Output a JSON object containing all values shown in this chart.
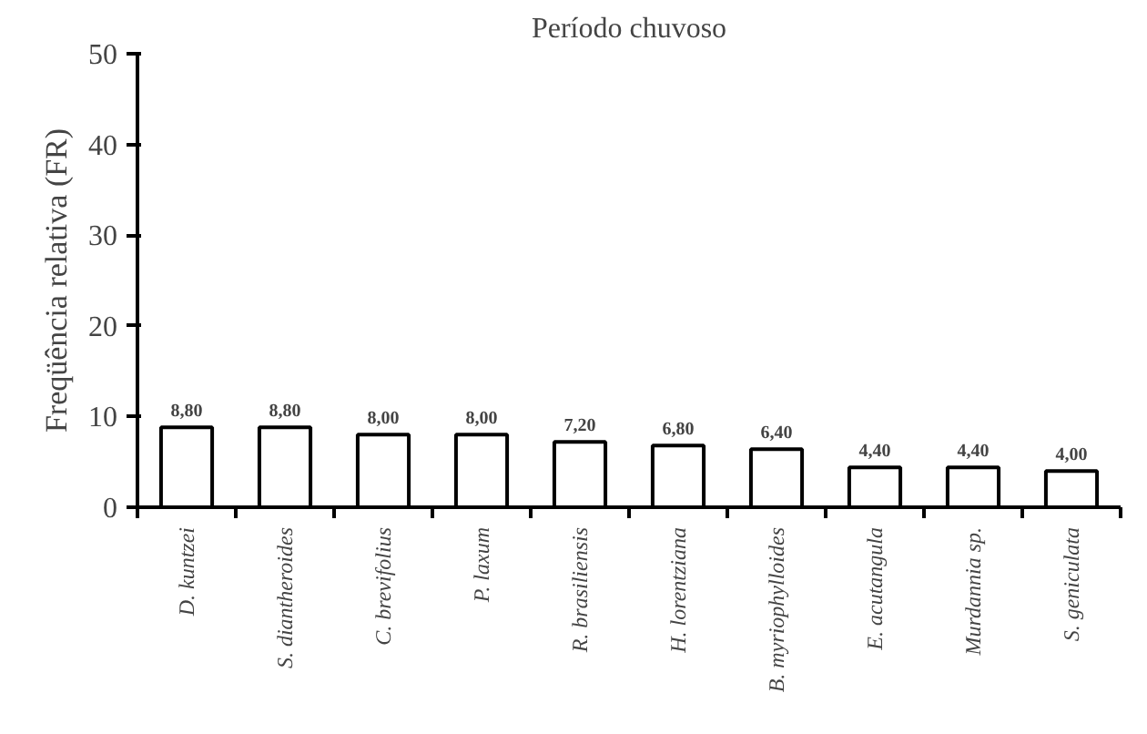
{
  "chart_data": {
    "type": "bar",
    "title": "Período chuvoso",
    "ylabel": "Freqüência relativa (FR)",
    "categories": [
      "D. kuntzei",
      "S. diantheroides",
      "C. brevifolius",
      "P. laxum",
      "R. brasiliensis",
      "H. lorentziana",
      "B. myriophylloides",
      "E. acutangula",
      "Murdannia sp.",
      "S. geniculata"
    ],
    "values": [
      8.8,
      8.8,
      8.0,
      8.0,
      7.2,
      6.8,
      6.4,
      4.4,
      4.4,
      4.0
    ],
    "value_labels": [
      "8,80",
      "8,80",
      "8,00",
      "8,00",
      "7,20",
      "6,80",
      "6,40",
      "4,40",
      "4,40",
      "4,00"
    ],
    "color": "#ffffff",
    "ylim": [
      0,
      50
    ],
    "yticks": [
      0,
      10,
      20,
      30,
      40,
      50
    ],
    "grid": false
  }
}
